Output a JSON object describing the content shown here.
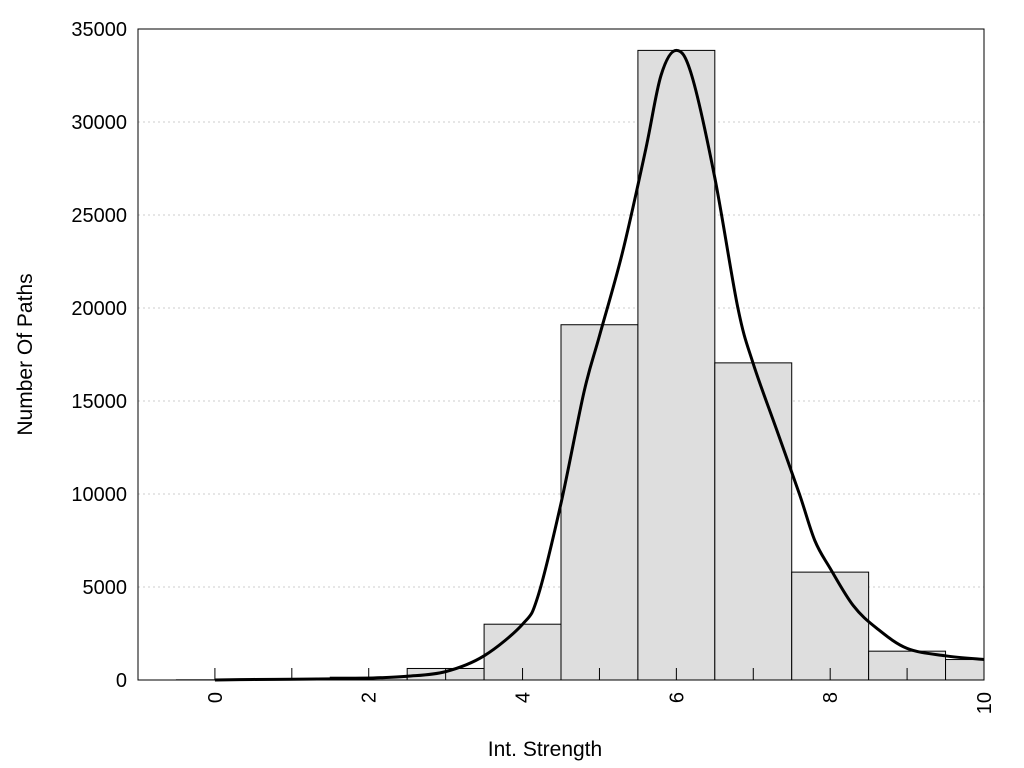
{
  "chart_data": {
    "type": "bar",
    "title": "",
    "xlabel": "Int. Strength",
    "ylabel": "Number Of Paths",
    "xlim": [
      -1,
      10
    ],
    "ylim": [
      0,
      35000
    ],
    "grid": {
      "y": true,
      "x": false
    },
    "x_ticks": [
      0,
      2,
      4,
      6,
      8,
      10
    ],
    "x_tick_labels": [
      "0",
      "2",
      "4",
      "6",
      "8",
      "10"
    ],
    "y_ticks": [
      0,
      5000,
      10000,
      15000,
      20000,
      25000,
      30000,
      35000
    ],
    "y_tick_labels": [
      "0",
      "5000",
      "10000",
      "15000",
      "20000",
      "25000",
      "30000",
      "35000"
    ],
    "bins": [
      {
        "x": 0,
        "value": 10
      },
      {
        "x": 1,
        "value": 40
      },
      {
        "x": 2,
        "value": 150
      },
      {
        "x": 3,
        "value": 620
      },
      {
        "x": 4,
        "value": 3000
      },
      {
        "x": 5,
        "value": 19100
      },
      {
        "x": 6,
        "value": 33850
      },
      {
        "x": 7,
        "value": 17050
      },
      {
        "x": 8,
        "value": 5800
      },
      {
        "x": 9,
        "value": 1550
      },
      {
        "x": 10,
        "value": 1100
      }
    ],
    "density_curve": {
      "x": [
        0,
        0.5,
        1,
        1.5,
        2,
        2.5,
        3,
        3.5,
        4,
        4.2,
        4.5,
        4.8,
        5,
        5.3,
        5.6,
        5.8,
        6,
        6.2,
        6.5,
        6.8,
        7,
        7.3,
        7.6,
        7.8,
        8,
        8.3,
        8.6,
        9,
        9.5,
        10
      ],
      "y": [
        0,
        30,
        40,
        60,
        100,
        200,
        450,
        1300,
        3000,
        4500,
        9500,
        15500,
        18500,
        23000,
        28500,
        32500,
        33850,
        32500,
        27000,
        20000,
        17000,
        13500,
        10000,
        7500,
        6000,
        4000,
        2800,
        1700,
        1300,
        1100
      ]
    },
    "colors": {
      "bar_fill": "#dedede",
      "bar_stroke": "#000000",
      "curve": "#000000",
      "grid": "#cccccc"
    }
  }
}
